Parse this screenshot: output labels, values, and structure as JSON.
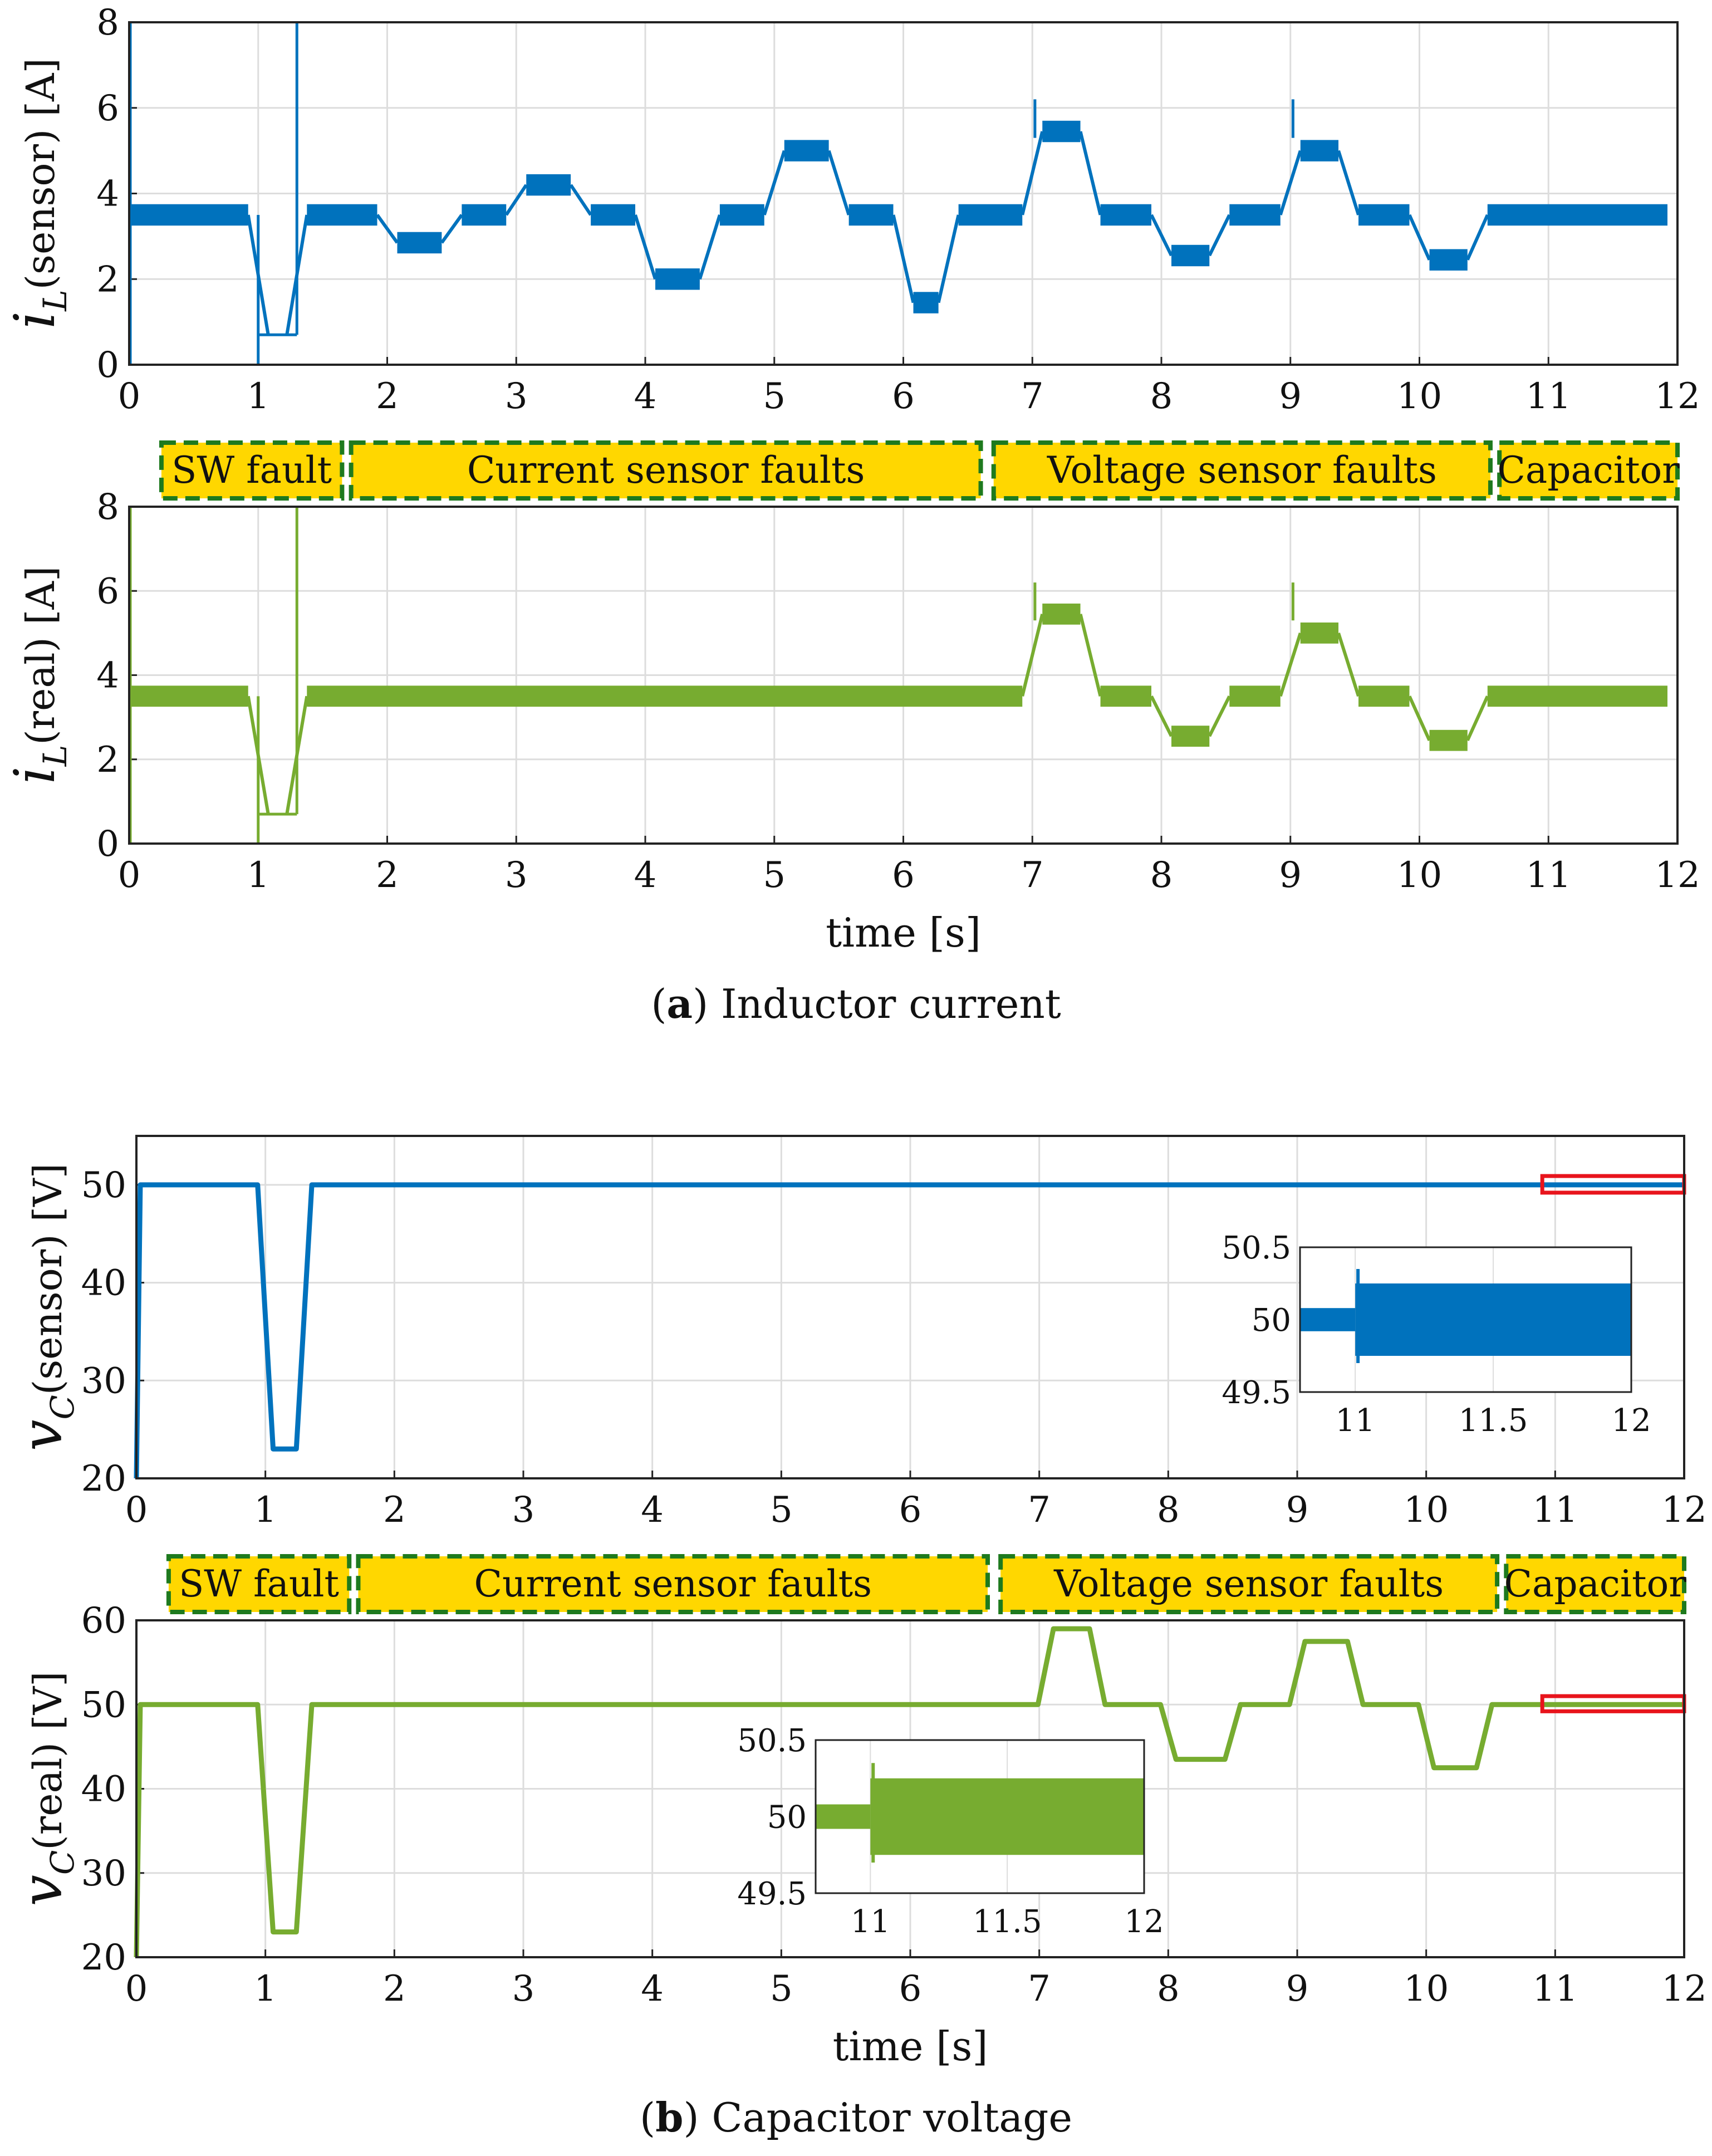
{
  "colors": {
    "sensor": "#0072bd",
    "real": "#77ac30",
    "band_fill": "#ffd700",
    "band_border": "#1e7a1e",
    "zoom_box": "#e8141c",
    "grid": "#dddddd",
    "axis": "#222222"
  },
  "bands": [
    {
      "label": "SW fault",
      "start": 0.25,
      "end": 1.65
    },
    {
      "label": "Current sensor faults",
      "start": 1.72,
      "end": 6.6
    },
    {
      "label": "Voltage sensor faults",
      "start": 6.7,
      "end": 10.55
    },
    {
      "label": "Capacitor",
      "start": 10.62,
      "end": 12.0
    }
  ],
  "captions": {
    "a_letter": "a",
    "a_text": "Inductor current",
    "b_letter": "b",
    "b_text": "Capacitor voltage"
  },
  "chart_data": [
    {
      "id": "iL_sensor",
      "type": "line",
      "color_key": "sensor",
      "ylabel_symbol": "i",
      "ylabel_sub": "L",
      "ylabel_text": "(sensor) [A]",
      "xlabel": "",
      "xlim": [
        0,
        12
      ],
      "ylim": [
        0,
        8
      ],
      "xticks": [
        0,
        1,
        2,
        3,
        4,
        5,
        6,
        7,
        8,
        9,
        10,
        11,
        12
      ],
      "yticks": [
        0,
        2,
        4,
        6,
        8
      ],
      "ripple": 0.25,
      "segments": [
        [
          0.0,
          1.0,
          3.5
        ],
        [
          1.0,
          1.3,
          0.7
        ],
        [
          1.3,
          2.0,
          3.5
        ],
        [
          2.0,
          2.5,
          2.85
        ],
        [
          2.5,
          3.0,
          3.5
        ],
        [
          3.0,
          3.5,
          4.2
        ],
        [
          3.5,
          4.0,
          3.5
        ],
        [
          4.0,
          4.5,
          2.0
        ],
        [
          4.5,
          5.0,
          3.5
        ],
        [
          5.0,
          5.5,
          5.0
        ],
        [
          5.5,
          6.0,
          3.5
        ],
        [
          6.0,
          6.35,
          1.45
        ],
        [
          6.35,
          7.0,
          3.5
        ],
        [
          7.0,
          7.45,
          5.45
        ],
        [
          7.45,
          8.0,
          3.5
        ],
        [
          8.0,
          8.45,
          2.55
        ],
        [
          8.45,
          9.0,
          3.5
        ],
        [
          9.0,
          9.45,
          5.0
        ],
        [
          9.45,
          10.0,
          3.5
        ],
        [
          10.0,
          10.45,
          2.45
        ],
        [
          10.45,
          12.0,
          3.5
        ]
      ]
    },
    {
      "id": "iL_real",
      "type": "line",
      "color_key": "real",
      "ylabel_symbol": "i",
      "ylabel_sub": "L",
      "ylabel_text": "(real) [A]",
      "xlabel": "time [s]",
      "xlim": [
        0,
        12
      ],
      "ylim": [
        0,
        8
      ],
      "xticks": [
        0,
        1,
        2,
        3,
        4,
        5,
        6,
        7,
        8,
        9,
        10,
        11,
        12
      ],
      "yticks": [
        0,
        2,
        4,
        6,
        8
      ],
      "ripple": 0.25,
      "segments": [
        [
          0.0,
          1.0,
          3.5
        ],
        [
          1.0,
          1.3,
          0.7
        ],
        [
          1.3,
          7.0,
          3.5
        ],
        [
          7.0,
          7.45,
          5.45
        ],
        [
          7.45,
          8.0,
          3.5
        ],
        [
          8.0,
          8.45,
          2.55
        ],
        [
          8.45,
          9.0,
          3.5
        ],
        [
          9.0,
          9.45,
          5.0
        ],
        [
          9.45,
          10.0,
          3.5
        ],
        [
          10.0,
          10.45,
          2.45
        ],
        [
          10.45,
          12.0,
          3.5
        ]
      ]
    },
    {
      "id": "vC_sensor",
      "type": "line",
      "color_key": "sensor",
      "ylabel_symbol": "v",
      "ylabel_sub": "C",
      "ylabel_text": "(sensor) [V]",
      "xlabel": "",
      "xlim": [
        0,
        12
      ],
      "ylim": [
        20,
        55
      ],
      "xticks": [
        0,
        1,
        2,
        3,
        4,
        5,
        6,
        7,
        8,
        9,
        10,
        11,
        12
      ],
      "yticks": [
        20,
        30,
        40,
        50
      ],
      "segments": [
        [
          0.0,
          1.0,
          50
        ],
        [
          1.0,
          1.3,
          23
        ],
        [
          1.3,
          12.0,
          50
        ]
      ],
      "zoom_box": {
        "x": [
          10.9,
          12.0
        ],
        "y": [
          49.2,
          50.9
        ]
      },
      "inset": {
        "xlim": [
          10.8,
          12
        ],
        "ylim": [
          49.5,
          50.5
        ],
        "xticks": [
          11,
          11.5,
          12
        ],
        "yticks": [
          49.5,
          50,
          50.5
        ],
        "before_ripple": 0.08,
        "after_ripple": 0.25,
        "spike": 50.35
      }
    },
    {
      "id": "vC_real",
      "type": "line",
      "color_key": "real",
      "ylabel_symbol": "v",
      "ylabel_sub": "C",
      "ylabel_text": "(real) [V]",
      "xlabel": "time [s]",
      "xlim": [
        0,
        12
      ],
      "ylim": [
        20,
        60
      ],
      "xticks": [
        0,
        1,
        2,
        3,
        4,
        5,
        6,
        7,
        8,
        9,
        10,
        11,
        12
      ],
      "yticks": [
        20,
        30,
        40,
        50,
        60
      ],
      "segments": [
        [
          0.0,
          1.0,
          50
        ],
        [
          1.0,
          1.3,
          23
        ],
        [
          1.3,
          7.05,
          50
        ],
        [
          7.05,
          7.45,
          59
        ],
        [
          7.45,
          8.0,
          50
        ],
        [
          8.0,
          8.5,
          43.5
        ],
        [
          8.5,
          9.0,
          50
        ],
        [
          9.0,
          9.45,
          57.5
        ],
        [
          9.45,
          10.0,
          50
        ],
        [
          10.0,
          10.45,
          42.5
        ],
        [
          10.45,
          12.0,
          50
        ]
      ],
      "zoom_box": {
        "x": [
          10.9,
          12.0
        ],
        "y": [
          49.2,
          51.0
        ]
      },
      "inset": {
        "xlim": [
          10.8,
          12
        ],
        "ylim": [
          49.5,
          50.5
        ],
        "xticks": [
          11,
          11.5,
          12
        ],
        "yticks": [
          49.5,
          50,
          50.5
        ],
        "before_ripple": 0.08,
        "after_ripple": 0.25,
        "spike": 50.35
      }
    }
  ]
}
